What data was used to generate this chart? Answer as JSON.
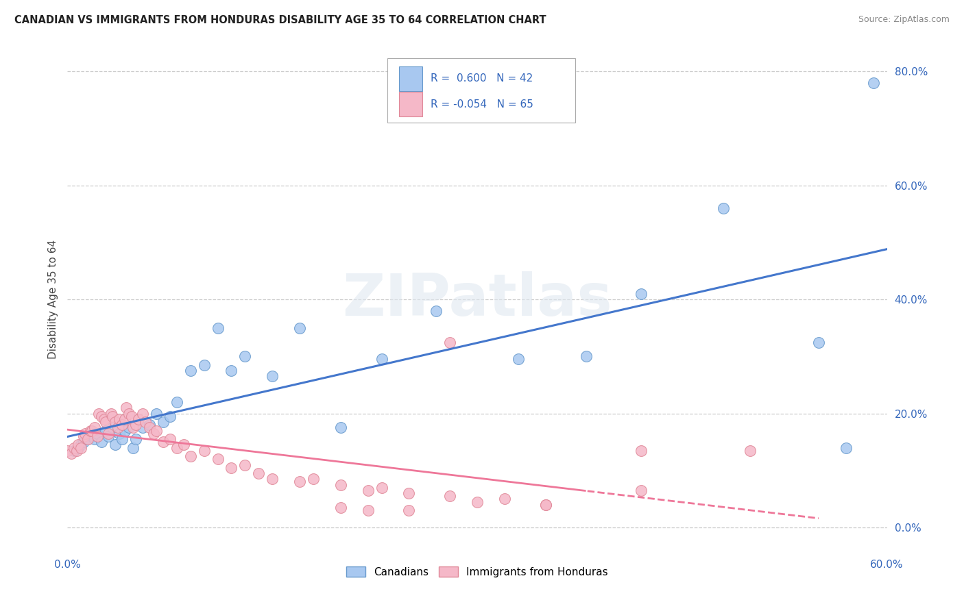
{
  "title": "CANADIAN VS IMMIGRANTS FROM HONDURAS DISABILITY AGE 35 TO 64 CORRELATION CHART",
  "source": "Source: ZipAtlas.com",
  "ylabel": "Disability Age 35 to 64",
  "canadians_color": "#A8C8F0",
  "canadians_edge": "#6699CC",
  "honduras_color": "#F5B8C8",
  "honduras_edge": "#E08898",
  "trend_blue": "#4477CC",
  "trend_pink": "#EE7799",
  "legend_R_canadian": " 0.600",
  "legend_N_canadian": "42",
  "legend_R_honduras": "-0.054",
  "legend_N_honduras": "65",
  "watermark_text": "ZIPatlas",
  "canadians_x": [
    0.005,
    0.008,
    0.01,
    0.012,
    0.015,
    0.018,
    0.02,
    0.022,
    0.025,
    0.028,
    0.03,
    0.033,
    0.035,
    0.038,
    0.04,
    0.042,
    0.045,
    0.048,
    0.05,
    0.055,
    0.06,
    0.065,
    0.07,
    0.075,
    0.08,
    0.09,
    0.1,
    0.11,
    0.12,
    0.13,
    0.15,
    0.17,
    0.2,
    0.23,
    0.27,
    0.33,
    0.38,
    0.42,
    0.48,
    0.55,
    0.57,
    0.59
  ],
  "canadians_y": [
    0.135,
    0.14,
    0.145,
    0.15,
    0.155,
    0.16,
    0.155,
    0.165,
    0.15,
    0.17,
    0.16,
    0.175,
    0.145,
    0.165,
    0.155,
    0.17,
    0.175,
    0.14,
    0.155,
    0.175,
    0.18,
    0.2,
    0.185,
    0.195,
    0.22,
    0.275,
    0.285,
    0.35,
    0.275,
    0.3,
    0.265,
    0.35,
    0.175,
    0.295,
    0.38,
    0.295,
    0.3,
    0.41,
    0.56,
    0.325,
    0.14,
    0.78
  ],
  "honduras_x": [
    0.0,
    0.003,
    0.005,
    0.007,
    0.008,
    0.01,
    0.012,
    0.013,
    0.015,
    0.017,
    0.018,
    0.02,
    0.022,
    0.023,
    0.025,
    0.027,
    0.028,
    0.03,
    0.032,
    0.033,
    0.035,
    0.037,
    0.038,
    0.04,
    0.042,
    0.043,
    0.045,
    0.047,
    0.048,
    0.05,
    0.052,
    0.055,
    0.057,
    0.06,
    0.063,
    0.065,
    0.07,
    0.075,
    0.08,
    0.085,
    0.09,
    0.1,
    0.11,
    0.12,
    0.13,
    0.14,
    0.15,
    0.17,
    0.18,
    0.2,
    0.22,
    0.23,
    0.25,
    0.28,
    0.3,
    0.32,
    0.35,
    0.28,
    0.35,
    0.42,
    0.2,
    0.22,
    0.25,
    0.42,
    0.5
  ],
  "honduras_y": [
    0.135,
    0.13,
    0.14,
    0.135,
    0.145,
    0.14,
    0.16,
    0.165,
    0.155,
    0.17,
    0.17,
    0.175,
    0.16,
    0.2,
    0.195,
    0.19,
    0.185,
    0.165,
    0.2,
    0.195,
    0.185,
    0.175,
    0.19,
    0.18,
    0.19,
    0.21,
    0.2,
    0.195,
    0.175,
    0.18,
    0.19,
    0.2,
    0.185,
    0.175,
    0.165,
    0.17,
    0.15,
    0.155,
    0.14,
    0.145,
    0.125,
    0.135,
    0.12,
    0.105,
    0.11,
    0.095,
    0.085,
    0.08,
    0.085,
    0.075,
    0.065,
    0.07,
    0.06,
    0.055,
    0.045,
    0.05,
    0.04,
    0.325,
    0.04,
    0.065,
    0.035,
    0.03,
    0.03,
    0.135,
    0.135
  ],
  "xlim": [
    0.0,
    0.6
  ],
  "ylim": [
    -0.05,
    0.85
  ],
  "y_ticks": [
    0.0,
    0.2,
    0.4,
    0.6,
    0.8
  ],
  "x_tick_show": [
    0.0,
    0.6
  ]
}
